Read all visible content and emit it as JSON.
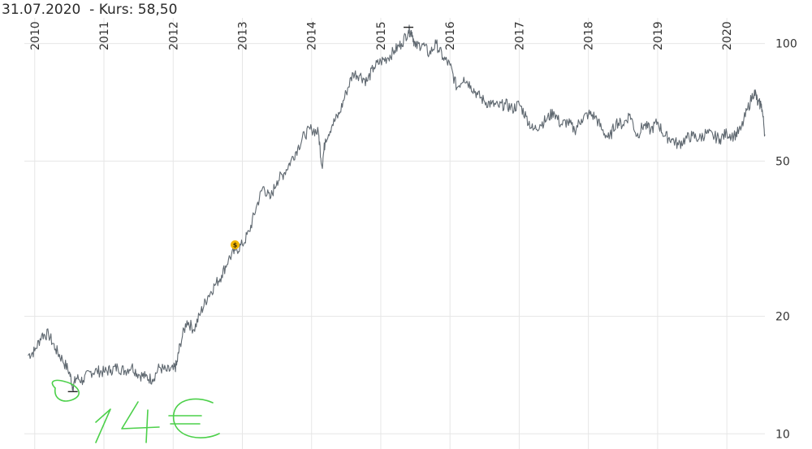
{
  "header": {
    "date": "31.07.2020",
    "kurs_label": "- Kurs:",
    "kurs_value": "58,50"
  },
  "annotation": {
    "handwritten_text": "14€",
    "ink_color": "#4cd04a"
  },
  "marker": {
    "icon": "dollar-icon",
    "symbol": "$",
    "color": "#f2b705"
  },
  "chart_data": {
    "type": "line",
    "title": "",
    "xlabel": "",
    "ylabel": "",
    "yscale": "log",
    "ylim": [
      9.5,
      112
    ],
    "xlim": [
      2009.85,
      2020.55
    ],
    "grid": true,
    "line_color": "#5f6870",
    "x_ticks": [
      "2010",
      "2011",
      "2012",
      "2013",
      "2014",
      "2015",
      "2016",
      "2017",
      "2018",
      "2019",
      "2020"
    ],
    "y_ticks": [
      10,
      20,
      50,
      100
    ],
    "series": [
      {
        "x": [
          2009.9,
          2010.0,
          2010.1,
          2010.2,
          2010.3,
          2010.4,
          2010.5,
          2010.55,
          2010.6,
          2010.7,
          2010.8,
          2010.9,
          2011.0,
          2011.1,
          2011.2,
          2011.3,
          2011.4,
          2011.5,
          2011.6,
          2011.7,
          2011.8,
          2011.9,
          2012.0,
          2012.05,
          2012.1,
          2012.2,
          2012.3,
          2012.4,
          2012.5,
          2012.6,
          2012.7,
          2012.8,
          2012.9,
          2013.0,
          2013.1,
          2013.2,
          2013.3,
          2013.4,
          2013.5,
          2013.6,
          2013.7,
          2013.8,
          2013.9,
          2014.0,
          2014.1,
          2014.15,
          2014.2,
          2014.3,
          2014.4,
          2014.5,
          2014.6,
          2014.7,
          2014.8,
          2014.9,
          2015.0,
          2015.1,
          2015.2,
          2015.3,
          2015.4,
          2015.45,
          2015.5,
          2015.6,
          2015.7,
          2015.8,
          2015.9,
          2016.0,
          2016.1,
          2016.2,
          2016.3,
          2016.4,
          2016.5,
          2016.6,
          2016.7,
          2016.8,
          2016.9,
          2017.0,
          2017.1,
          2017.2,
          2017.3,
          2017.4,
          2017.5,
          2017.6,
          2017.7,
          2017.8,
          2017.9,
          2018.0,
          2018.1,
          2018.2,
          2018.3,
          2018.4,
          2018.5,
          2018.6,
          2018.7,
          2018.8,
          2018.9,
          2019.0,
          2019.1,
          2019.2,
          2019.3,
          2019.4,
          2019.5,
          2019.6,
          2019.7,
          2019.8,
          2019.9,
          2020.0,
          2020.1,
          2020.2,
          2020.3,
          2020.4,
          2020.45,
          2020.5,
          2020.55
        ],
        "y": [
          15.9,
          16.3,
          17.9,
          18.0,
          16.5,
          15.5,
          14.4,
          13.2,
          13.9,
          13.7,
          14.4,
          14.5,
          14.4,
          14.6,
          14.8,
          14.5,
          14.9,
          14.2,
          14.0,
          13.8,
          14.8,
          14.5,
          14.6,
          15.0,
          17.0,
          19.5,
          18.5,
          20.5,
          22.5,
          24.0,
          25.5,
          28.0,
          29.5,
          30.5,
          33.0,
          38.0,
          43.0,
          40.0,
          44.5,
          46.5,
          50.0,
          54.0,
          58.5,
          60.5,
          59.0,
          48.5,
          57.0,
          62.0,
          66.0,
          75.0,
          84.0,
          83.0,
          80.0,
          87.0,
          90.0,
          92.0,
          96.0,
          100.0,
          108.0,
          107.0,
          98.0,
          100.0,
          94.0,
          100.0,
          92.0,
          88.0,
          77.0,
          82.0,
          78.0,
          74.0,
          71.0,
          70.0,
          69.0,
          70.0,
          68.0,
          70.0,
          65.0,
          60.0,
          62.0,
          64.0,
          67.0,
          62.0,
          63.0,
          60.0,
          64.0,
          66.0,
          65.0,
          60.0,
          57.0,
          63.0,
          62.0,
          66.0,
          58.0,
          62.0,
          60.0,
          63.0,
          58.0,
          57.0,
          55.0,
          57.0,
          58.0,
          57.0,
          59.0,
          58.0,
          57.0,
          59.0,
          58.0,
          60.0,
          68.0,
          76.0,
          70.0,
          70.0,
          58.5
        ]
      }
    ]
  }
}
